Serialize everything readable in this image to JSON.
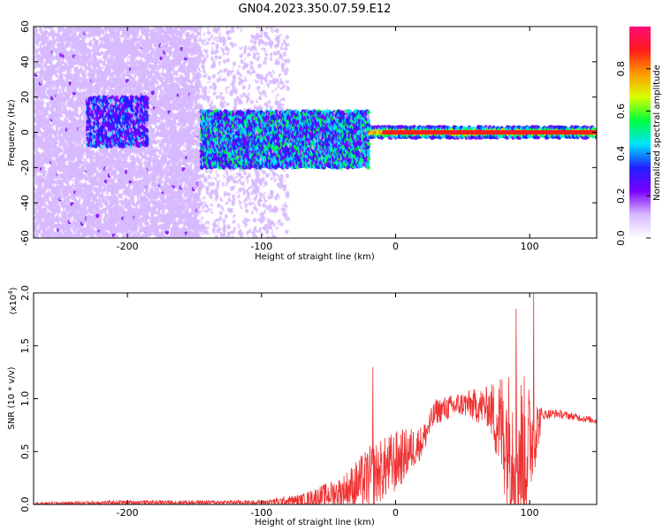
{
  "title": "GN04.2023.350.07.59.E12",
  "chart_data": [
    {
      "type": "heatmap",
      "xlabel": "Height of straight line (km)",
      "ylabel": "Frequency (Hz)",
      "xlim": [
        -270,
        150
      ],
      "ylim": [
        -60,
        60
      ],
      "xticks": [
        -200,
        -100,
        0,
        100
      ],
      "yticks": [
        -60,
        -40,
        -20,
        0,
        20,
        40,
        60
      ],
      "colorbar": {
        "label": "Normalized spectral amplitude",
        "range": [
          0,
          1
        ],
        "ticks": [
          0.0,
          0.2,
          0.4,
          0.6,
          0.8
        ],
        "colors": [
          "#ffffff",
          "#d7b8ff",
          "#7a00ff",
          "#1f1fff",
          "#00e5ff",
          "#00ff3a",
          "#d8ff00",
          "#ff9a00",
          "#ff1a1a",
          "#ff0a78"
        ]
      },
      "regions": [
        {
          "x": [
            -270,
            -145
          ],
          "f": [
            -60,
            60
          ],
          "amplitude": 0.12,
          "note": "scattered noise"
        },
        {
          "x": [
            -145,
            -80
          ],
          "f": [
            -60,
            60
          ],
          "amplitude": 0.06,
          "note": "sparse noise"
        },
        {
          "x": [
            -230,
            -185
          ],
          "f": [
            -8,
            20
          ],
          "amplitude": 0.3
        },
        {
          "x": [
            -145,
            -20
          ],
          "f": [
            -20,
            12
          ],
          "amplitude": 0.4
        },
        {
          "x": [
            -20,
            150
          ],
          "f": [
            -3,
            3
          ],
          "amplitude": 0.9,
          "note": "narrow band at 0 Hz"
        }
      ]
    },
    {
      "type": "line",
      "xlabel": "Height of straight line (km)",
      "ylabel": "SNR (10 * v/v)",
      "ylabel_multiplier": "(x10^4)",
      "xlim": [
        -270,
        150
      ],
      "ylim": [
        0,
        2.0
      ],
      "xticks": [
        -200,
        -100,
        0,
        100
      ],
      "yticks": [
        0.0,
        0.5,
        1.0,
        1.5,
        2.0
      ],
      "color": "#ee3333",
      "envelope": {
        "x": [
          -270,
          -200,
          -100,
          -70,
          -40,
          -20,
          0,
          20,
          30,
          50,
          70,
          80,
          95,
          110,
          120,
          150
        ],
        "baseline": [
          0.01,
          0.02,
          0.02,
          0.04,
          0.12,
          0.25,
          0.4,
          0.6,
          0.88,
          0.95,
          0.92,
          0.7,
          0.45,
          0.85,
          0.86,
          0.79
        ],
        "spread": [
          0.01,
          0.02,
          0.02,
          0.06,
          0.15,
          0.3,
          0.3,
          0.15,
          0.12,
          0.12,
          0.2,
          0.6,
          0.8,
          0.05,
          0.04,
          0.03
        ]
      },
      "peaks": [
        {
          "x": -17,
          "y": 1.3
        },
        {
          "x": 90,
          "y": 1.85
        },
        {
          "x": 103,
          "y": 2.0
        },
        {
          "x": 97,
          "y": 0.04
        }
      ]
    }
  ]
}
